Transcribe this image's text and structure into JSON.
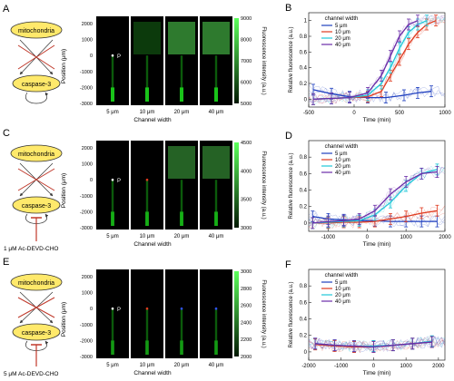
{
  "panels": {
    "A": "A",
    "B": "B",
    "C": "C",
    "D": "D",
    "E": "E",
    "F": "F"
  },
  "diagram": {
    "mitochondria": "mitochondria",
    "caspase": "caspase-3",
    "inhibitor_c": "1 μM Ac-DEVD-CHO",
    "inhibitor_e": "5 μM Ac-DEVD-CHO"
  },
  "image_rows": {
    "columns": [
      "5 μm",
      "10 μm",
      "20 μm",
      "40 μm"
    ],
    "xlabel": "Channel width",
    "ylabel": "Position (μm)",
    "p_label": "P",
    "yticks": [
      2000,
      1000,
      0,
      -1000,
      -2000,
      -3000
    ],
    "colorbar_label": "Fluorescence intensity (a.u.)",
    "colorbar_ticks": {
      "A": [
        9000,
        8000,
        7000,
        6000,
        5000
      ],
      "C": [
        4500,
        4000,
        3500,
        3000
      ],
      "E": [
        3000,
        2800,
        2600,
        2400,
        2200,
        2000
      ]
    }
  },
  "colors": {
    "s5": "#1f3fbf",
    "s10": "#e03a1f",
    "s20": "#20c8d8",
    "s40": "#6a2ca8",
    "green": "#19c419",
    "yellow": "#ffe96b",
    "inhibit": "#c0392b"
  },
  "chart_data": [
    {
      "type": "line",
      "panel": "B",
      "xlabel": "Time (min)",
      "ylabel": "Relative fluorescence (a.u.)",
      "legend_title": "channel width",
      "xlim": [
        -500,
        1000
      ],
      "ylim": [
        -0.1,
        1.1
      ],
      "xticks": [
        -500,
        0,
        500,
        1000
      ],
      "yticks": [
        0,
        0.2,
        0.4,
        0.6,
        0.8,
        1.0
      ],
      "ytick_labels": [
        "0",
        "0.2",
        "0.4",
        "0.6",
        "0.8",
        "1"
      ],
      "series": [
        {
          "name": "5 μm",
          "key": "s5",
          "x": [
            -450,
            -250,
            -50,
            150,
            350,
            550,
            700,
            850
          ],
          "y": [
            0.12,
            0.07,
            0.03,
            0.02,
            0.02,
            0.05,
            0.08,
            0.1
          ]
        },
        {
          "name": "10 μm",
          "key": "s10",
          "x": [
            -450,
            -250,
            -50,
            150,
            300,
            400,
            500,
            600,
            700,
            800,
            900
          ],
          "y": [
            0.0,
            0.01,
            0.02,
            0.03,
            0.1,
            0.3,
            0.5,
            0.7,
            0.85,
            0.95,
            1.0
          ]
        },
        {
          "name": "20 μm",
          "key": "s20",
          "x": [
            -450,
            -250,
            -50,
            150,
            300,
            400,
            500,
            600,
            700,
            800
          ],
          "y": [
            0.0,
            0.01,
            0.02,
            0.05,
            0.2,
            0.4,
            0.65,
            0.85,
            0.95,
            1.0
          ]
        },
        {
          "name": "40 μm",
          "key": "s40",
          "x": [
            -450,
            -250,
            -50,
            150,
            300,
            400,
            500,
            600,
            700
          ],
          "y": [
            0.0,
            0.01,
            0.02,
            0.08,
            0.3,
            0.55,
            0.8,
            0.95,
            1.0
          ]
        }
      ]
    },
    {
      "type": "line",
      "panel": "D",
      "xlabel": "Time (min)",
      "ylabel": "Relative fluorescence (a.u.)",
      "legend_title": "channel width",
      "xlim": [
        -1500,
        2000
      ],
      "ylim": [
        -0.1,
        1.0
      ],
      "xticks": [
        -1000,
        0,
        1000,
        2000
      ],
      "yticks": [
        0,
        0.2,
        0.4,
        0.6,
        0.8
      ],
      "ytick_labels": [
        "0",
        "0.2",
        "0.4",
        "0.6",
        "0.8"
      ],
      "series": [
        {
          "name": "5 μm",
          "key": "s5",
          "x": [
            -1400,
            -1000,
            -600,
            -200,
            200,
            600,
            1000,
            1400,
            1800
          ],
          "y": [
            0.08,
            0.05,
            0.04,
            0.03,
            0.03,
            0.02,
            0.02,
            0.02,
            0.02
          ]
        },
        {
          "name": "10 μm",
          "key": "s10",
          "x": [
            -1400,
            -1000,
            -600,
            -200,
            200,
            600,
            1000,
            1400,
            1800
          ],
          "y": [
            0.0,
            0.0,
            0.01,
            0.01,
            0.02,
            0.05,
            0.08,
            0.12,
            0.15
          ]
        },
        {
          "name": "20 μm",
          "key": "s20",
          "x": [
            -1400,
            -1000,
            -600,
            -200,
            200,
            600,
            1000,
            1400,
            1800
          ],
          "y": [
            0.0,
            0.01,
            0.02,
            0.03,
            0.1,
            0.25,
            0.45,
            0.6,
            0.65
          ]
        },
        {
          "name": "40 μm",
          "key": "s40",
          "x": [
            -1400,
            -1000,
            -600,
            -200,
            200,
            600,
            1000,
            1400,
            1800
          ],
          "y": [
            0.0,
            0.02,
            0.03,
            0.05,
            0.15,
            0.35,
            0.5,
            0.6,
            0.62
          ]
        }
      ]
    },
    {
      "type": "line",
      "panel": "F",
      "xlabel": "Time (min)",
      "ylabel": "Relative fluorescence (a.u.)",
      "legend_title": "channel width",
      "xlim": [
        -2000,
        2200
      ],
      "ylim": [
        -0.1,
        1.0
      ],
      "xticks": [
        -2000,
        -1000,
        0,
        1000,
        2000
      ],
      "yticks": [
        0,
        0.2,
        0.4,
        0.6,
        0.8
      ],
      "ytick_labels": [
        "0",
        "0.2",
        "0.4",
        "0.6",
        "0.8"
      ],
      "series": [
        {
          "name": "5 μm",
          "key": "s5",
          "x": [
            -1800,
            -1200,
            -600,
            0,
            600,
            1200,
            1800
          ],
          "y": [
            0.1,
            0.08,
            0.06,
            0.07,
            0.08,
            0.1,
            0.12
          ]
        },
        {
          "name": "10 μm",
          "key": "s10",
          "x": [
            -1800,
            -1200,
            -600,
            0,
            600,
            1200,
            1800
          ],
          "y": [
            0.09,
            0.07,
            0.06,
            0.06,
            0.08,
            0.1,
            0.12
          ]
        },
        {
          "name": "20 μm",
          "key": "s20",
          "x": [
            -1800,
            -1200,
            -600,
            0,
            600,
            1200,
            1800
          ],
          "y": [
            0.1,
            0.08,
            0.07,
            0.07,
            0.08,
            0.1,
            0.13
          ]
        },
        {
          "name": "40 μm",
          "key": "s40",
          "x": [
            -1800,
            -1200,
            -600,
            0,
            600,
            1200,
            1800
          ],
          "y": [
            0.1,
            0.08,
            0.07,
            0.06,
            0.08,
            0.1,
            0.12
          ]
        }
      ]
    }
  ]
}
